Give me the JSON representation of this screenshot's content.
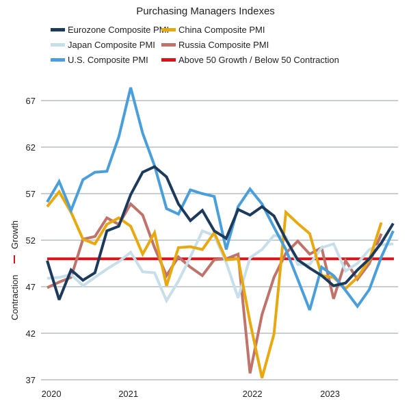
{
  "chart_data": {
    "type": "line",
    "title": "Purchasing Managers Indexes",
    "xlabel": "",
    "ylabel_upper": "Growth",
    "ylabel_lower": "Contraction",
    "ylim": [
      37,
      68.5
    ],
    "yticks": [
      37,
      42,
      47,
      52,
      57,
      62,
      67
    ],
    "x_tick_labels": [
      {
        "label": "2020",
        "index": 0.35
      },
      {
        "label": "2021",
        "index": 6.8
      },
      {
        "label": "2022",
        "index": 17.2
      },
      {
        "label": "2023",
        "index": 23.7
      }
    ],
    "n_points": 30,
    "grid": true,
    "legend_position": "top",
    "threshold": {
      "name": "Above 50 Growth / Below 50 Contraction",
      "value": 50,
      "color": "#d7141a"
    },
    "series": [
      {
        "name": "Russia Composite PMI",
        "color": "#c0736a",
        "values": [
          46.9,
          47.5,
          48.0,
          52.1,
          52.4,
          54.4,
          53.7,
          55.9,
          54.7,
          51.2,
          48.2,
          50.2,
          49.1,
          48.2,
          49.9,
          50.0,
          50.5,
          37.7,
          44.0,
          48.0,
          50.6,
          51.9,
          50.5,
          51.2,
          45.7,
          49.8,
          47.8,
          49.5,
          52.7
        ]
      },
      {
        "name": "Japan Composite PMI",
        "color": "#c7dfe8",
        "values": [
          47.9,
          48.0,
          48.3,
          47.1,
          48.0,
          48.9,
          49.7,
          50.7,
          48.6,
          48.5,
          45.5,
          47.6,
          50.2,
          53.0,
          52.5,
          49.6,
          45.8,
          50.1,
          51.0,
          52.5,
          52.4,
          49.4,
          49.4,
          51.2,
          51.6,
          48.7,
          49.5,
          51.0,
          51.5,
          51.6
        ]
      },
      {
        "name": "China Composite PMI",
        "color": "#e8a80f",
        "values": [
          55.6,
          57.2,
          55.0,
          52.1,
          51.6,
          53.7,
          54.4,
          53.5,
          50.5,
          52.8,
          47.1,
          51.2,
          51.3,
          51.0,
          52.8,
          49.9,
          50.0,
          43.2,
          37.2,
          41.9,
          55.0,
          53.8,
          52.7,
          48.2,
          48.0,
          46.8,
          48.0,
          49.9,
          53.9
        ]
      },
      {
        "name": "U.S. Composite PMI",
        "color": "#4a9fda",
        "values": [
          56.1,
          58.3,
          55.2,
          58.5,
          59.3,
          59.4,
          63.1,
          68.4,
          63.5,
          60.0,
          55.4,
          54.8,
          57.4,
          57.0,
          56.7,
          51.0,
          55.6,
          57.5,
          55.9,
          53.4,
          51.0,
          47.8,
          44.5,
          49.1,
          48.2,
          46.6,
          44.9,
          46.7,
          50.2,
          53.0
        ]
      },
      {
        "name": "Eurozone Composite PMI",
        "color": "#1b3a5c",
        "values": [
          49.8,
          45.6,
          48.8,
          47.7,
          48.5,
          53.0,
          53.5,
          56.9,
          59.3,
          59.9,
          58.8,
          55.9,
          54.1,
          55.2,
          53.0,
          52.2,
          55.3,
          54.7,
          55.6,
          54.6,
          52.1,
          49.9,
          49.0,
          48.2,
          47.1,
          47.4,
          48.8,
          50.0,
          51.7,
          53.8
        ]
      }
    ]
  },
  "legend": [
    {
      "label": "Eurozone Composite PMI",
      "color": "#1b3a5c"
    },
    {
      "label": "China Composite PMI",
      "color": "#e8a80f"
    },
    {
      "label": "Japan Composite PMI",
      "color": "#c7dfe8"
    },
    {
      "label": "Russia Composite PMI",
      "color": "#c0736a"
    },
    {
      "label": "U.S. Composite PMI",
      "color": "#4a9fda"
    },
    {
      "label": "Above 50 Growth / Below 50 Contraction",
      "color": "#d7141a"
    }
  ]
}
